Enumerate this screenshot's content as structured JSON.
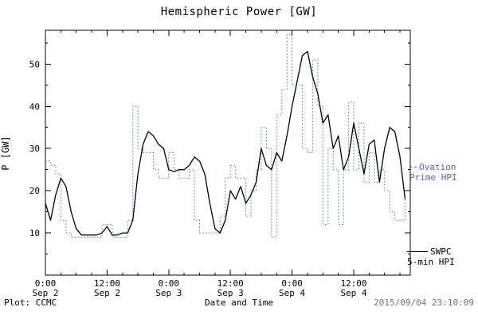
{
  "title": "Hemispheric Power [GW]",
  "footer": {
    "plot_credit": "Plot: CCMC",
    "xlabel": "Date and Time",
    "timestamp": "2015/09/04 23:10:09"
  },
  "legend": {
    "ovation": {
      "line1": "Ovation",
      "line2": "Prime HPI"
    },
    "swpc": {
      "line1": "SWPC",
      "line2": "5-min HPI"
    }
  },
  "colors": {
    "ovation": "#4466cc",
    "swpc": "#000000",
    "timestamp": "#66778c"
  },
  "chart_data": {
    "type": "line",
    "title": "Hemispheric Power [GW]",
    "xlabel": "Date and Time",
    "ylabel": "P [GW]",
    "ylim": [
      0,
      58
    ],
    "yticks": [
      10,
      20,
      30,
      40,
      50
    ],
    "y_minor_step": 5,
    "xlim": [
      0,
      71
    ],
    "x_unit": "hours since 2015-09-02 00:00",
    "x_minor_step": 3,
    "grid": false,
    "legend_position": "right",
    "xticks": [
      {
        "hour": 0,
        "time": "0:00",
        "date": "Sep 2"
      },
      {
        "hour": 12,
        "time": "12:00",
        "date": "Sep 2"
      },
      {
        "hour": 24,
        "time": "0:00",
        "date": "Sep 3"
      },
      {
        "hour": 36,
        "time": "12:00",
        "date": "Sep 3"
      },
      {
        "hour": 48,
        "time": "0:00",
        "date": "Sep 4"
      },
      {
        "hour": 60,
        "time": "12:00",
        "date": "Sep 4"
      }
    ],
    "series": [
      {
        "name": "Ovation Prime HPI",
        "color": "#4466cc",
        "style": "dotted-step",
        "x_start": 0,
        "x_step": 1,
        "values": [
          27,
          26,
          24,
          13,
          10,
          9,
          9,
          9,
          9,
          9,
          9,
          12,
          12,
          9,
          9,
          9,
          13,
          40,
          30,
          29,
          29,
          25,
          23,
          23,
          29,
          25,
          23,
          23,
          25,
          13,
          10,
          10,
          10,
          10,
          14,
          23,
          26,
          23,
          23,
          14,
          20,
          25,
          35,
          30,
          9,
          38,
          44,
          57,
          45,
          45,
          30,
          29,
          51,
          40,
          12,
          30,
          25,
          12,
          25,
          41,
          25,
          36,
          22,
          29,
          22,
          25,
          20,
          15,
          13,
          13,
          18
        ]
      },
      {
        "name": "SWPC 5-min HPI",
        "color": "#000000",
        "style": "solid",
        "x_start": 0,
        "x_step": 1,
        "values": [
          17,
          13,
          19,
          23,
          21,
          15,
          11,
          9.5,
          9.5,
          9.5,
          9.5,
          10,
          11.5,
          9.5,
          9.5,
          10,
          10,
          13,
          24,
          31,
          34,
          33,
          31,
          30,
          25,
          24.5,
          25,
          25,
          26,
          28,
          27,
          24,
          17,
          11,
          10,
          13,
          20,
          18,
          21,
          17,
          19,
          22,
          30,
          26,
          25,
          29,
          27,
          33,
          40,
          46,
          52,
          53,
          47,
          43,
          36,
          38,
          30,
          33,
          25,
          28,
          36,
          30,
          24,
          31,
          32,
          22,
          30,
          35,
          34,
          28,
          18
        ]
      }
    ]
  }
}
